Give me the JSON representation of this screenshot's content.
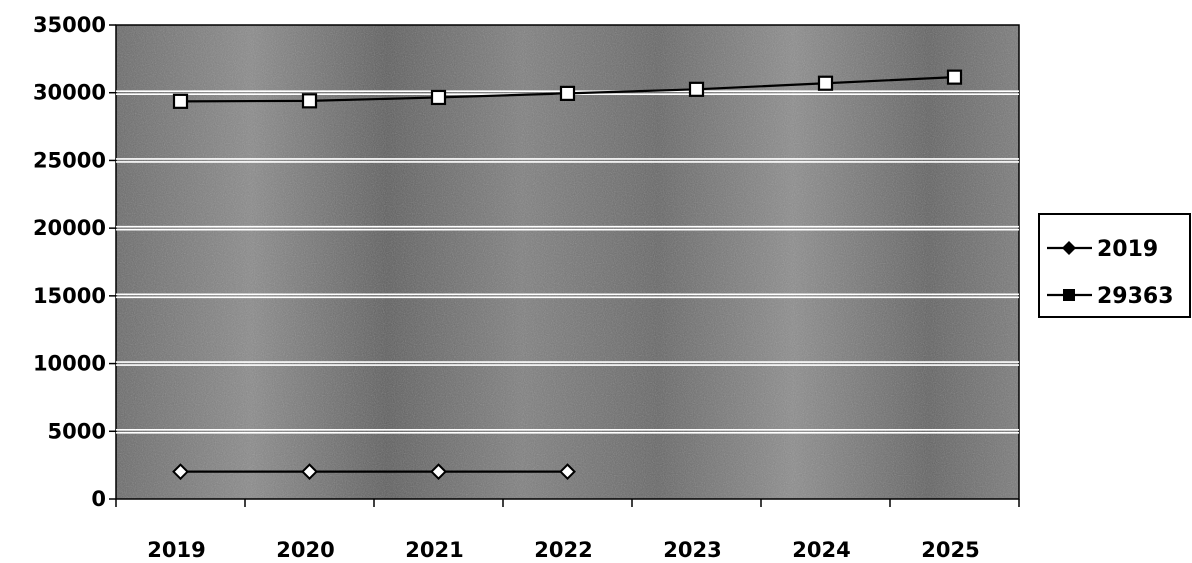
{
  "chart_data": {
    "type": "line",
    "title": "",
    "xlabel": "",
    "ylabel": "",
    "categories": [
      "2019",
      "2020",
      "2021",
      "2022",
      "2023",
      "2024",
      "2025"
    ],
    "ylim": [
      0,
      35000
    ],
    "yticks": [
      0,
      5000,
      10000,
      15000,
      20000,
      25000,
      30000,
      35000
    ],
    "ytick_labels": [
      "0",
      "5000",
      "10000",
      "15000",
      "20000",
      "25000",
      "30000",
      "35000"
    ],
    "grid": true,
    "legend_position": "right",
    "colors": {
      "plot_background": "#7a7a7a",
      "gridline": "#ffffff",
      "series_line": "#000000",
      "marker_fill": "#ffffff"
    },
    "series": [
      {
        "name": "2019",
        "marker": "diamond",
        "values": [
          2019,
          2020,
          2021,
          2022,
          null,
          null,
          null
        ]
      },
      {
        "name": "29363",
        "marker": "square",
        "values": [
          29363,
          29400,
          29650,
          29950,
          30250,
          30700,
          31150
        ]
      }
    ]
  }
}
